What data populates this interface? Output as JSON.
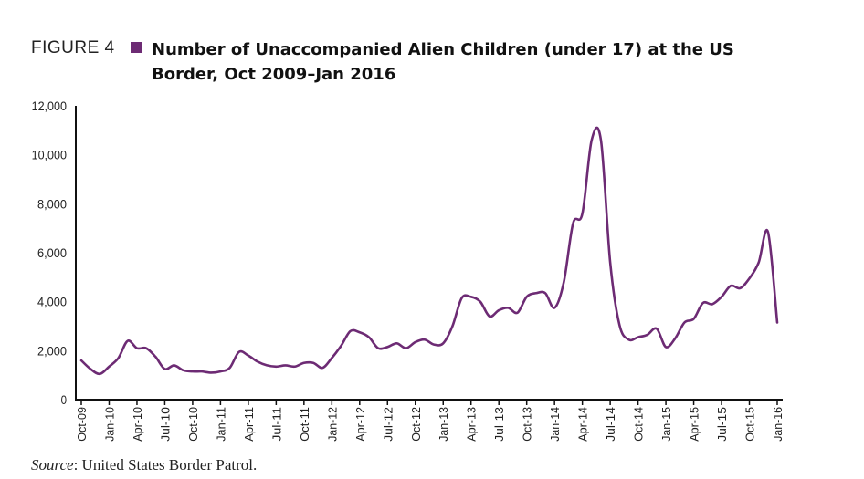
{
  "figure": {
    "label": "FIGURE 4",
    "title": "Number of Unaccompanied Alien Children (under 17) at the US Border, Oct 2009–Jan 2016"
  },
  "source": {
    "prefix": "Source",
    "text": ": United States Border Patrol."
  },
  "colors": {
    "accent": "#6d2b74",
    "axis": "#111111",
    "text": "#222222"
  },
  "chart_data": {
    "type": "line",
    "title": "Number of Unaccompanied Alien Children (under 17) at the US Border, Oct 2009–Jan 2016",
    "xlabel": "",
    "ylabel": "",
    "ylim": [
      0,
      12000
    ],
    "yticks": [
      0,
      2000,
      4000,
      6000,
      8000,
      10000,
      12000
    ],
    "ytick_labels": [
      "0",
      "2,000",
      "4,000",
      "6,000",
      "8,000",
      "10,000",
      "12,000"
    ],
    "grid": false,
    "xtick_labels": [
      "Oct-09",
      "Jan-10",
      "Apr-10",
      "Jul-10",
      "Oct-10",
      "Jan-11",
      "Apr-11",
      "Jul-11",
      "Oct-11",
      "Jan-12",
      "Apr-12",
      "Jul-12",
      "Oct-12",
      "Jan-13",
      "Apr-13",
      "Jul-13",
      "Oct-13",
      "Jan-14",
      "Apr-14",
      "Jul-14",
      "Oct-14",
      "Jan-15",
      "Apr-15",
      "Jul-15",
      "Oct-15",
      "Jan-16"
    ],
    "series": [
      {
        "color": "#6d2b74",
        "x": [
          "Oct-09",
          "Nov-09",
          "Dec-09",
          "Jan-10",
          "Feb-10",
          "Mar-10",
          "Apr-10",
          "May-10",
          "Jun-10",
          "Jul-10",
          "Aug-10",
          "Sep-10",
          "Oct-10",
          "Nov-10",
          "Dec-10",
          "Jan-11",
          "Feb-11",
          "Mar-11",
          "Apr-11",
          "May-11",
          "Jun-11",
          "Jul-11",
          "Aug-11",
          "Sep-11",
          "Oct-11",
          "Nov-11",
          "Dec-11",
          "Jan-12",
          "Feb-12",
          "Mar-12",
          "Apr-12",
          "May-12",
          "Jun-12",
          "Jul-12",
          "Aug-12",
          "Sep-12",
          "Oct-12",
          "Nov-12",
          "Dec-12",
          "Jan-13",
          "Feb-13",
          "Mar-13",
          "Apr-13",
          "May-13",
          "Jun-13",
          "Jul-13",
          "Aug-13",
          "Sep-13",
          "Oct-13",
          "Nov-13",
          "Dec-13",
          "Jan-14",
          "Feb-14",
          "Mar-14",
          "Apr-14",
          "May-14",
          "Jun-14",
          "Jul-14",
          "Aug-14",
          "Sep-14",
          "Oct-14",
          "Nov-14",
          "Dec-14",
          "Jan-15",
          "Feb-15",
          "Mar-15",
          "Apr-15",
          "May-15",
          "Jun-15",
          "Jul-15",
          "Aug-15",
          "Sep-15",
          "Oct-15",
          "Nov-15",
          "Dec-15",
          "Jan-16"
        ],
        "values": [
          1600,
          1250,
          1050,
          1350,
          1700,
          2400,
          2100,
          2100,
          1750,
          1250,
          1400,
          1200,
          1150,
          1150,
          1100,
          1150,
          1300,
          1950,
          1800,
          1550,
          1400,
          1350,
          1400,
          1350,
          1500,
          1500,
          1300,
          1700,
          2200,
          2800,
          2750,
          2550,
          2100,
          2150,
          2300,
          2100,
          2350,
          2450,
          2250,
          2300,
          3000,
          4150,
          4200,
          4000,
          3400,
          3650,
          3750,
          3550,
          4200,
          4350,
          4350,
          3750,
          4800,
          7200,
          7600,
          10600,
          10600,
          5600,
          3050,
          2450,
          2550,
          2650,
          2900,
          2150,
          2500,
          3150,
          3300,
          3950,
          3900,
          4200,
          4650,
          4550,
          4950,
          5600,
          6850,
          3150
        ]
      }
    ]
  }
}
